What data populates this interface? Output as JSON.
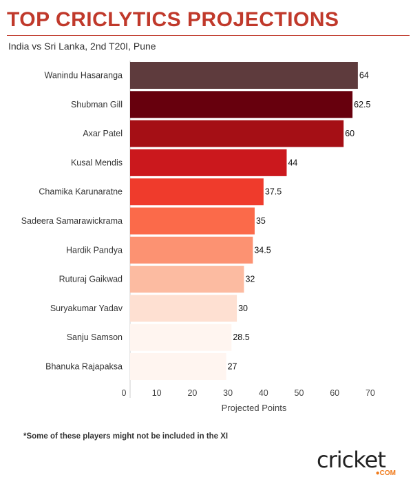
{
  "header": {
    "title": "TOP CRICLYTICS PROJECTIONS",
    "subtitle": "India vs Sri Lanka, 2nd T20I, Pune"
  },
  "chart_data": {
    "type": "bar",
    "orientation": "horizontal",
    "categories": [
      "Wanindu Hasaranga",
      "Shubman Gill",
      "Axar Patel",
      "Kusal Mendis",
      "Chamika Karunaratne",
      "Sadeera Samarawickrama",
      "Hardik Pandya",
      "Ruturaj Gaikwad",
      "Suryakumar Yadav",
      "Sanju Samson",
      "Bhanuka Rajapaksa"
    ],
    "values": [
      64,
      62.5,
      60,
      44,
      37.5,
      35,
      34.5,
      32,
      30,
      28.5,
      27
    ],
    "value_labels": [
      "64",
      "62.5",
      "60",
      "44",
      "37.5",
      "35",
      "34.5",
      "32",
      "30",
      "28.5",
      "27"
    ],
    "colors": [
      "#5e3b3d",
      "#67000d",
      "#a50f15",
      "#cb181d",
      "#ef3b2c",
      "#fb6a4a",
      "#fc9272",
      "#fcbba1",
      "#fee0d2",
      "#fff5f0",
      "#fff5f0"
    ],
    "xlabel": "Projected Points",
    "xlim": [
      0,
      70
    ],
    "xticks": [
      "0",
      "10",
      "20",
      "30",
      "40",
      "50",
      "60",
      "70"
    ],
    "grid": false
  },
  "footnote": "*Some of these players might not be included in the XI",
  "logo": {
    "main": "cricket",
    "sub": "●COM"
  }
}
